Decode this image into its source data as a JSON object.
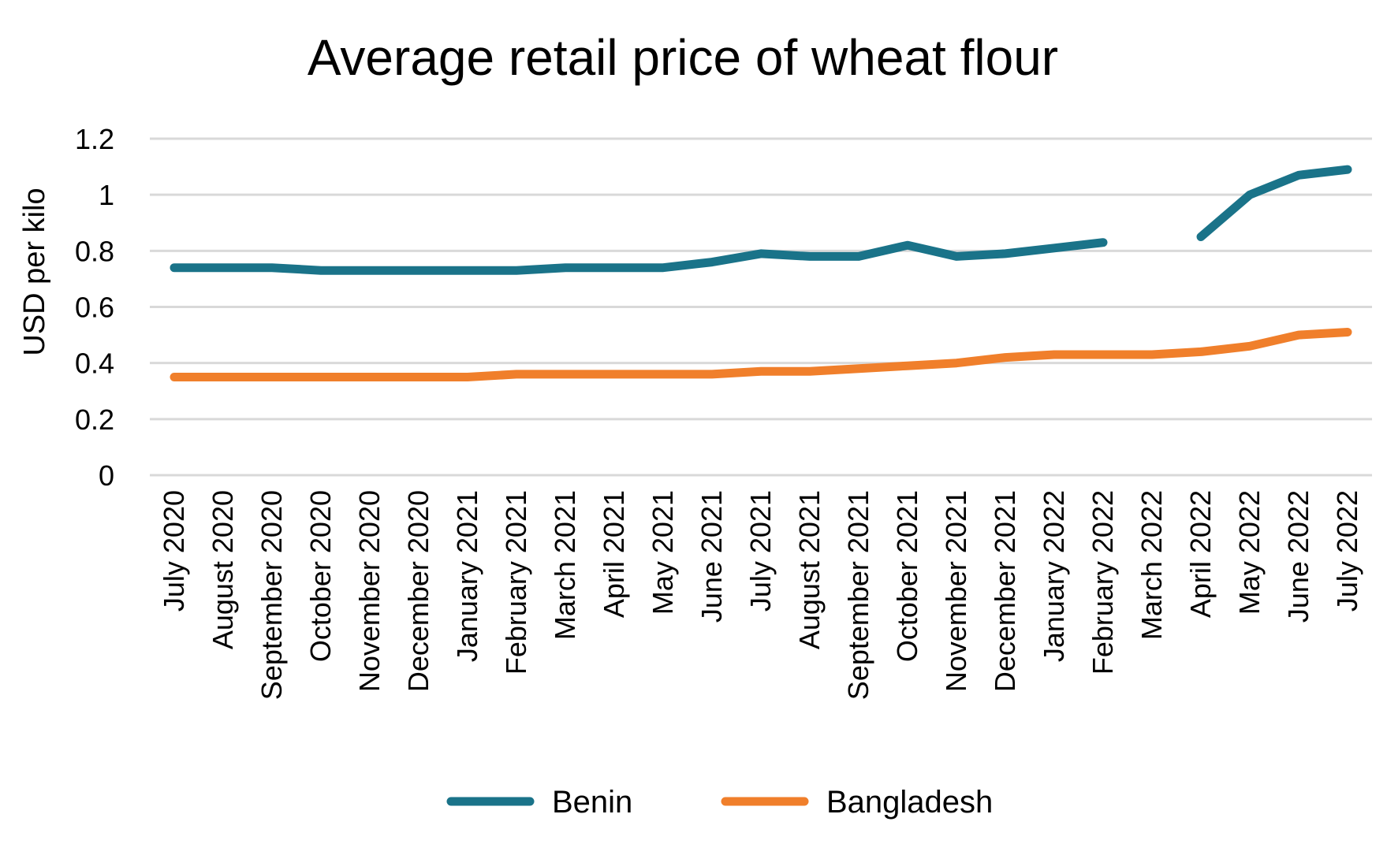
{
  "chart_data": {
    "type": "line",
    "title": "Average retail price of wheat flour",
    "ylabel": "USD per kilo",
    "xlabel": "",
    "ylim": [
      0,
      1.2
    ],
    "yticks": [
      "0",
      "0.2",
      "0.4",
      "0.6",
      "0.8",
      "1",
      "1.2"
    ],
    "grid": true,
    "legend_position": "bottom",
    "categories": [
      "July 2020",
      "August 2020",
      "September 2020",
      "October 2020",
      "November 2020",
      "December 2020",
      "January 2021",
      "February 2021",
      "March 2021",
      "April 2021",
      "May 2021",
      "June 2021",
      "July 2021",
      "August 2021",
      "September 2021",
      "October 2021",
      "November 2021",
      "December 2021",
      "January 2022",
      "February 2022",
      "March 2022",
      "April 2022",
      "May 2022",
      "June 2022",
      "July 2022"
    ],
    "series": [
      {
        "name": "Benin",
        "color": "#1a7389",
        "values": [
          0.74,
          0.74,
          0.74,
          0.73,
          0.73,
          0.73,
          0.73,
          0.73,
          0.74,
          0.74,
          0.74,
          0.76,
          0.79,
          0.78,
          0.78,
          0.82,
          0.78,
          0.79,
          0.81,
          0.83,
          null,
          0.85,
          1.0,
          1.07,
          1.09
        ]
      },
      {
        "name": "Bangladesh",
        "color": "#f07f2b",
        "values": [
          0.35,
          0.35,
          0.35,
          0.35,
          0.35,
          0.35,
          0.35,
          0.36,
          0.36,
          0.36,
          0.36,
          0.36,
          0.37,
          0.37,
          0.38,
          0.39,
          0.4,
          0.42,
          0.43,
          0.43,
          0.43,
          0.44,
          0.46,
          0.5,
          0.51
        ]
      }
    ]
  }
}
